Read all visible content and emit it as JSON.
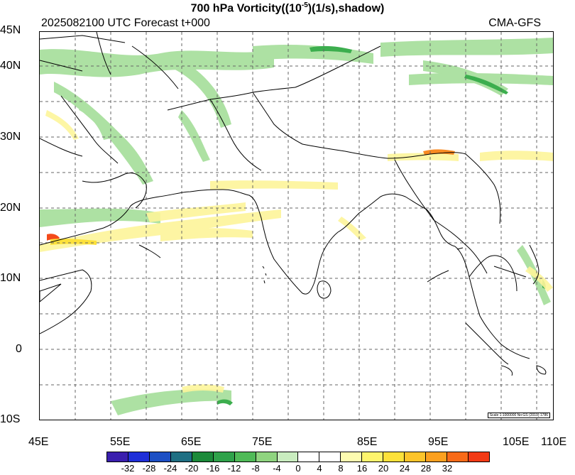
{
  "title": "700 hPa Vorticity((10",
  "title_sup": "-5",
  "title_rest": ")(1/s),shadow)",
  "subtitle": "2025082100 UTC Forecast t+000",
  "model": "CMA-GFS",
  "scale_note": "Scale 1:1000000 No:GS (2019) 1786",
  "lat_labels": [
    "45N",
    "40N",
    "30N",
    "20N",
    "10N",
    "0",
    "10S"
  ],
  "lon_labels": [
    "45E",
    "55E",
    "65E",
    "75E",
    "85E",
    "95E",
    "105E",
    "110E"
  ],
  "colorbar": {
    "ticks": [
      "-32",
      "-28",
      "-24",
      "-20",
      "-16",
      "-12",
      "-8",
      "-4",
      "0",
      "4",
      "8",
      "16",
      "20",
      "24",
      "28",
      "32"
    ],
    "colors": [
      "#3a1fae",
      "#1f2fd8",
      "#1c4fc4",
      "#1f6f83",
      "#1c8a3a",
      "#2fa24a",
      "#4fba57",
      "#8fd47f",
      "#c9ecbf",
      "#ffffff",
      "#ffffff",
      "#fdfcb0",
      "#fef46d",
      "#fde13a",
      "#fdc42a",
      "#fca01f",
      "#f86a18",
      "#f23a15"
    ]
  }
}
